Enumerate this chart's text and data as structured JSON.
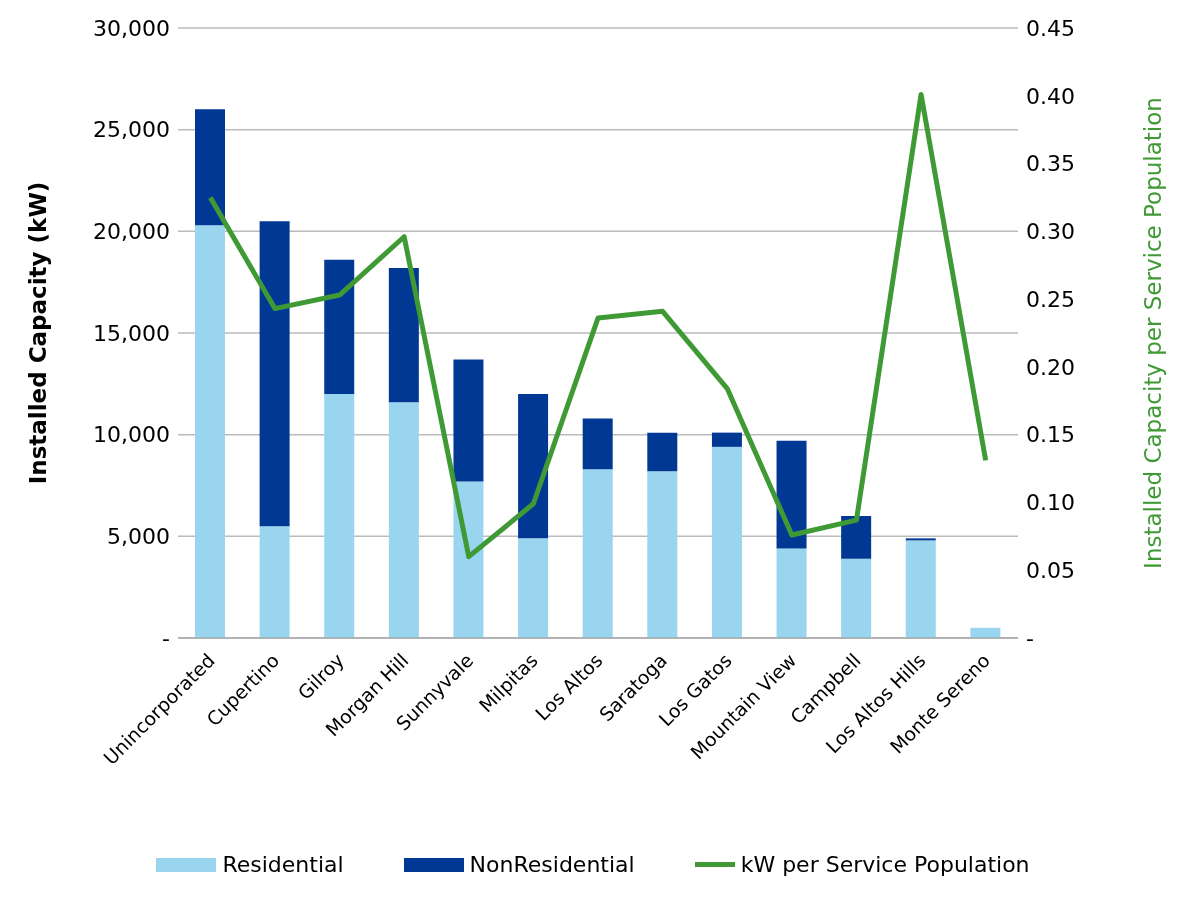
{
  "chart_data": {
    "type": "bar",
    "stacked": true,
    "ylabel": "Installed Capacity (kW)",
    "y2label": "Installed Capacity per Service Population",
    "categories": [
      "Unincorporated",
      "Cupertino",
      "Gilroy",
      "Morgan Hill",
      "Sunnyvale",
      "Milpitas",
      "Los Altos",
      "Saratoga",
      "Los Gatos",
      "Mountain View",
      "Campbell",
      "Los Altos Hills",
      "Monte Sereno"
    ],
    "series": [
      {
        "name": "Residential",
        "color": "#99d5ee",
        "values": [
          20300,
          5500,
          12000,
          11600,
          7700,
          4900,
          8300,
          8200,
          9400,
          4400,
          3900,
          4800,
          500
        ]
      },
      {
        "name": "NonResidential",
        "color": "#003893",
        "values": [
          5700,
          15000,
          6600,
          6600,
          6000,
          7100,
          2500,
          1900,
          700,
          5300,
          2100,
          100,
          0
        ]
      },
      {
        "name": "kW per Service Population",
        "type": "line",
        "axis": "y2",
        "color": "#3f9a35",
        "values": [
          0.325,
          0.243,
          0.253,
          0.296,
          0.06,
          0.099,
          0.236,
          0.241,
          0.184,
          0.076,
          0.087,
          0.401,
          0.131
        ]
      }
    ],
    "ylim": [
      0,
      30000
    ],
    "yticks": [
      {
        "value": 0,
        "label": "-"
      },
      {
        "value": 5000,
        "label": "5,000"
      },
      {
        "value": 10000,
        "label": "10,000"
      },
      {
        "value": 15000,
        "label": "15,000"
      },
      {
        "value": 20000,
        "label": "20,000"
      },
      {
        "value": 25000,
        "label": "25,000"
      },
      {
        "value": 30000,
        "label": "30,000"
      }
    ],
    "y2lim": [
      0,
      0.45
    ],
    "y2ticks": [
      {
        "value": 0,
        "label": "-"
      },
      0.05,
      {
        "value": 0.1,
        "label": "0.10"
      },
      0.15,
      {
        "value": 0.2,
        "label": "0.20"
      },
      0.25,
      {
        "value": 0.3,
        "label": "0.30"
      },
      0.35,
      {
        "value": 0.4,
        "label": "0.40"
      },
      0.45
    ],
    "grid": "y",
    "legend": "bottom",
    "marker": "none",
    "line_style": "solid"
  }
}
